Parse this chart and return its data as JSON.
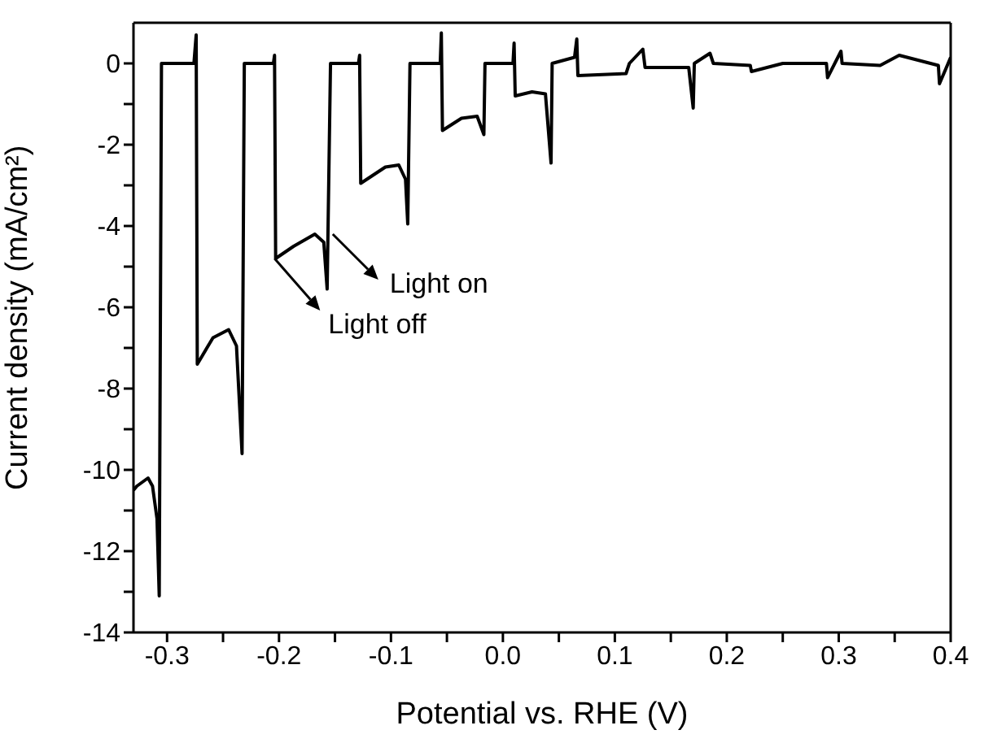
{
  "chart_data": {
    "type": "line",
    "xlabel": "Potential vs. RHE (V)",
    "ylabel": "Current density (mA/cm²)",
    "xlim": [
      -0.33,
      0.4
    ],
    "ylim": [
      -14,
      1
    ],
    "xticks": [
      -0.3,
      {
        "value": -0.25,
        "label": null
      },
      -0.2,
      {
        "value": -0.15,
        "label": null
      },
      -0.1,
      {
        "value": -0.05,
        "label": null
      },
      {
        "value": 0,
        "label": "0.0"
      },
      {
        "value": 0.05,
        "label": null
      },
      0.1,
      {
        "value": 0.15,
        "label": null
      },
      0.2,
      {
        "value": 0.25,
        "label": null
      },
      0.3,
      {
        "value": 0.35,
        "label": null
      },
      0.4
    ],
    "yticks": [
      -14,
      {
        "value": -13,
        "label": null
      },
      -12,
      {
        "value": -11,
        "label": null
      },
      -10,
      {
        "value": -9,
        "label": null
      },
      -8,
      {
        "value": -7,
        "label": null
      },
      -6,
      {
        "value": -5,
        "label": null
      },
      -4,
      {
        "value": -3,
        "label": null
      },
      -2,
      {
        "value": -1,
        "label": null
      },
      0
    ],
    "marker": "none",
    "line_style": "solid",
    "series": [
      {
        "color": "#000000",
        "x": [
          -0.33,
          -0.327,
          -0.317,
          -0.313,
          -0.309,
          -0.307,
          -0.305,
          -0.276,
          -0.274,
          -0.273,
          -0.259,
          -0.245,
          -0.238,
          -0.233,
          -0.231,
          -0.205,
          -0.204,
          -0.203,
          -0.187,
          -0.168,
          -0.16,
          -0.157,
          -0.154,
          -0.129,
          -0.128,
          -0.127,
          -0.105,
          -0.093,
          -0.087,
          -0.085,
          -0.083,
          -0.056,
          -0.055,
          -0.054,
          -0.037,
          -0.023,
          -0.017,
          -0.016,
          0.009,
          0.01,
          0.011,
          0.026,
          0.038,
          0.043,
          0.044,
          0.064,
          0.066,
          0.067,
          0.11,
          0.113,
          0.125,
          0.127,
          0.166,
          0.17,
          0.171,
          0.185,
          0.188,
          0.221,
          0.222,
          0.25,
          0.289,
          0.29,
          0.302,
          0.303,
          0.337,
          0.354,
          0.389,
          0.39,
          0.4
        ],
        "values": [
          -10.5,
          -10.4,
          -10.2,
          -10.4,
          -11.2,
          -13.1,
          0,
          0,
          0.7,
          -7.4,
          -6.75,
          -6.55,
          -6.95,
          -9.6,
          0,
          0,
          0.2,
          -4.8,
          -4.5,
          -4.2,
          -4.4,
          -5.55,
          0,
          0,
          0.2,
          -2.95,
          -2.55,
          -2.5,
          -2.85,
          -3.95,
          0,
          0,
          0.75,
          -1.65,
          -1.35,
          -1.3,
          -1.75,
          0,
          0,
          0.5,
          -0.8,
          -0.7,
          -0.75,
          -2.45,
          0,
          0.15,
          0.6,
          -0.3,
          -0.25,
          0,
          0.35,
          -0.1,
          -0.1,
          -1.1,
          0,
          0.25,
          0,
          -0.05,
          -0.2,
          0,
          0,
          -0.35,
          0.3,
          0,
          -0.05,
          0.2,
          -0.05,
          -0.5,
          0.15
        ]
      }
    ],
    "annotations": [
      {
        "text": "Light on",
        "x": -0.152,
        "y": -4.2
      },
      {
        "text": "Light off",
        "x": -0.204,
        "y": -4.8
      }
    ]
  }
}
